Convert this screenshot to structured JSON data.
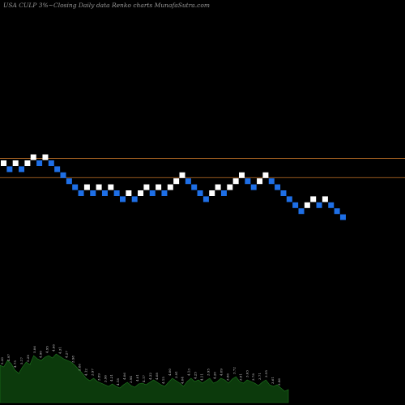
{
  "header": {
    "symbol_text": "USA CULP 3%~",
    "subtitle_text": "Closing Daily data  Renko  charts MunafaSutra.com"
  },
  "chart_data": {
    "type": "renko",
    "title": "",
    "resistance_lines": [
      {
        "label": "",
        "level": 0.8
      },
      {
        "label": "",
        "level": -2.4
      }
    ],
    "brick_up_color": "#ffffff",
    "brick_down_color": "#1e6fe6",
    "line_color": "#c8762a",
    "bricks": [
      {
        "level": 0,
        "dir": "up"
      },
      {
        "level": -1,
        "dir": "down"
      },
      {
        "level": 0,
        "dir": "up"
      },
      {
        "level": -1,
        "dir": "down"
      },
      {
        "level": 0,
        "dir": "up"
      },
      {
        "level": 1,
        "dir": "up"
      },
      {
        "level": 0,
        "dir": "down"
      },
      {
        "level": 1,
        "dir": "up"
      },
      {
        "level": 0,
        "dir": "down"
      },
      {
        "level": -1,
        "dir": "down"
      },
      {
        "level": -2,
        "dir": "down"
      },
      {
        "level": -3,
        "dir": "down"
      },
      {
        "level": -4,
        "dir": "down"
      },
      {
        "level": -5,
        "dir": "down"
      },
      {
        "level": -4,
        "dir": "up"
      },
      {
        "level": -5,
        "dir": "down"
      },
      {
        "level": -4,
        "dir": "up"
      },
      {
        "level": -5,
        "dir": "down"
      },
      {
        "level": -4,
        "dir": "up"
      },
      {
        "level": -5,
        "dir": "down"
      },
      {
        "level": -6,
        "dir": "down"
      },
      {
        "level": -5,
        "dir": "up"
      },
      {
        "level": -6,
        "dir": "down"
      },
      {
        "level": -5,
        "dir": "up"
      },
      {
        "level": -4,
        "dir": "up"
      },
      {
        "level": -5,
        "dir": "down"
      },
      {
        "level": -4,
        "dir": "up"
      },
      {
        "level": -5,
        "dir": "down"
      },
      {
        "level": -4,
        "dir": "up"
      },
      {
        "level": -3,
        "dir": "up"
      },
      {
        "level": -2,
        "dir": "up"
      },
      {
        "level": -3,
        "dir": "down"
      },
      {
        "level": -4,
        "dir": "down"
      },
      {
        "level": -5,
        "dir": "down"
      },
      {
        "level": -6,
        "dir": "down"
      },
      {
        "level": -5,
        "dir": "up"
      },
      {
        "level": -4,
        "dir": "up"
      },
      {
        "level": -5,
        "dir": "down"
      },
      {
        "level": -4,
        "dir": "up"
      },
      {
        "level": -3,
        "dir": "up"
      },
      {
        "level": -2,
        "dir": "up"
      },
      {
        "level": -3,
        "dir": "down"
      },
      {
        "level": -4,
        "dir": "down"
      },
      {
        "level": -3,
        "dir": "up"
      },
      {
        "level": -2,
        "dir": "up"
      },
      {
        "level": -3,
        "dir": "down"
      },
      {
        "level": -4,
        "dir": "down"
      },
      {
        "level": -5,
        "dir": "down"
      },
      {
        "level": -6,
        "dir": "down"
      },
      {
        "level": -7,
        "dir": "down"
      },
      {
        "level": -8,
        "dir": "down"
      },
      {
        "level": -7,
        "dir": "up"
      },
      {
        "level": -6,
        "dir": "up"
      },
      {
        "level": -7,
        "dir": "down"
      },
      {
        "level": -6,
        "dir": "up"
      },
      {
        "level": -7,
        "dir": "down"
      },
      {
        "level": -8,
        "dir": "down"
      },
      {
        "level": -9,
        "dir": "down"
      }
    ],
    "volume_profile": [
      46,
      44,
      52,
      48,
      40,
      36,
      44,
      50,
      47,
      58,
      54,
      52,
      56,
      58,
      55,
      60,
      57,
      54,
      52,
      50,
      46,
      41,
      36,
      30,
      27,
      30,
      26,
      24,
      22,
      20,
      23,
      20,
      18,
      22,
      25,
      21,
      19,
      23,
      24,
      22,
      25,
      28,
      25,
      22,
      20,
      25,
      30,
      27,
      24,
      20,
      26,
      30,
      26,
      28,
      24,
      27,
      30,
      24,
      26,
      30,
      28,
      24,
      29,
      32,
      26,
      24,
      28,
      26,
      24,
      21,
      25,
      28,
      22,
      20,
      22,
      18,
      14,
      16
    ],
    "volume_labels": [
      "5.30",
      "4.97",
      "4.75",
      "5.17",
      "5.29",
      "5.06",
      "4.90",
      "4.95",
      "4.66",
      "4.31",
      "4.27",
      "3.98",
      "3.86",
      "4.12",
      "3.97",
      "3.89",
      "3.96",
      "4.21",
      "4.18",
      "4.06",
      "3.94",
      "4.01",
      "4.17",
      "4.22",
      "4.08",
      "4.15",
      "4.00",
      "3.91",
      "4.04",
      "4.13",
      "4.25",
      "4.11",
      "3.95",
      "4.20",
      "4.09",
      "3.86",
      "3.72",
      "3.81",
      "3.63",
      "3.78",
      "3.71",
      "3.55",
      "3.61",
      "3.46"
    ]
  }
}
